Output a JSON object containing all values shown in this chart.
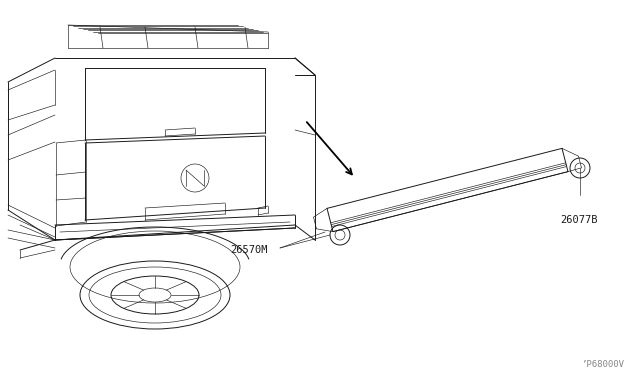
{
  "background_color": "#ffffff",
  "figure_width": 6.4,
  "figure_height": 3.72,
  "dpi": 100,
  "watermark_text": "’P68000V",
  "watermark_fontsize": 6.5,
  "watermark_color": "#888888",
  "label_26570M_text": "26570M",
  "label_26077B_text": "26077B",
  "line_color": "#1a1a1a",
  "line_color_light": "#555555",
  "lw_main": 0.7,
  "lw_thin": 0.45,
  "lw_thick": 1.0
}
